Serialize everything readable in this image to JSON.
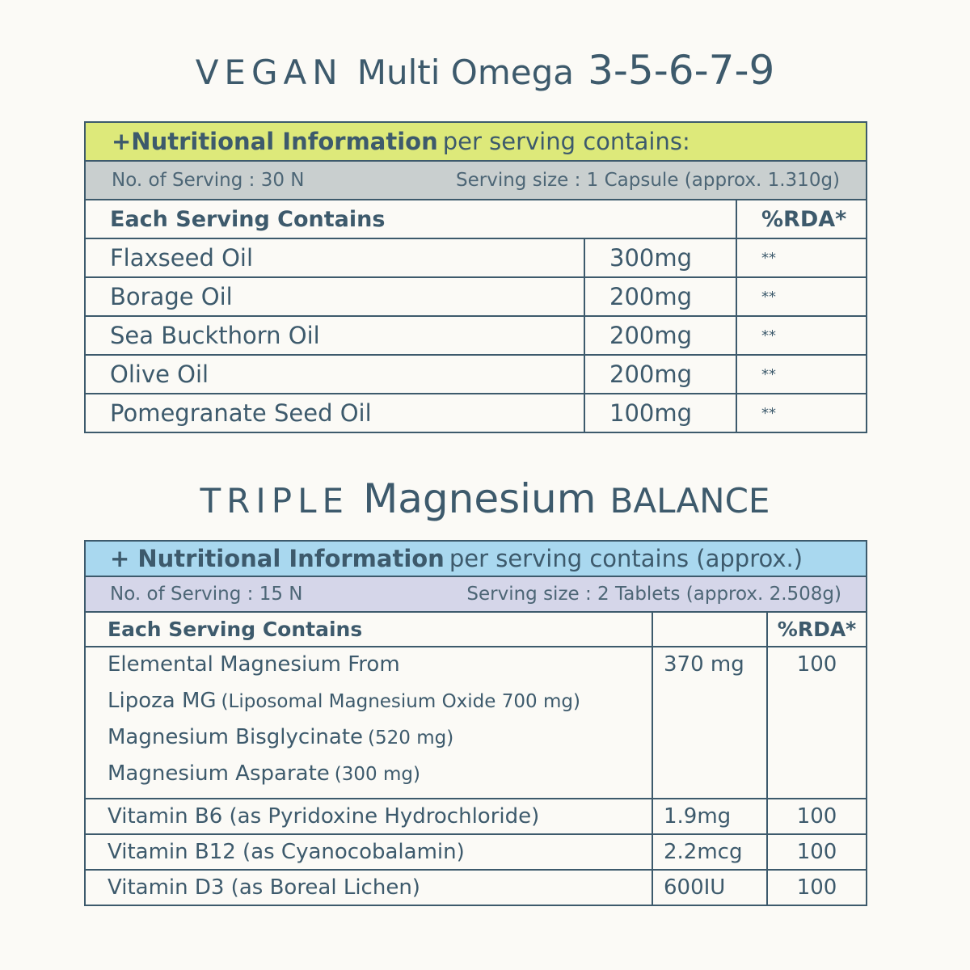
{
  "panels": [
    {
      "title": [
        "VEGAN",
        "Multi Omega",
        "3-5-6-7-9"
      ],
      "info": {
        "bold": "+Nutritional Information",
        "rest": "per serving contains:"
      },
      "servings": "No. of Serving : 30 N",
      "size": "Serving size : 1 Capsule (approx. 1.310g)",
      "header": {
        "label": "Each Serving Contains",
        "rda": "%RDA*"
      },
      "rows": [
        [
          "Flaxseed Oil",
          "300mg",
          "**"
        ],
        [
          "Borage Oil",
          "200mg",
          "**"
        ],
        [
          "Sea Buckthorn Oil",
          "200mg",
          "**"
        ],
        [
          "Olive Oil",
          "200mg",
          "**"
        ],
        [
          "Pomegranate Seed Oil",
          "100mg",
          "**"
        ]
      ]
    },
    {
      "title": [
        "TRIPLE",
        "Magnesium",
        "BALANCE"
      ],
      "info": {
        "bold": "+ Nutritional Information",
        "rest": "per serving contains (approx.)"
      },
      "servings": "No. of Serving : 15 N",
      "size": "Serving size : 2 Tablets (approx. 2.508g)",
      "header": {
        "label": "Each Serving Contains",
        "rda": "%RDA*"
      },
      "rows": [
        {
          "lines": [
            {
              "text": "Elemental Magnesium From"
            },
            {
              "text": "Lipoza MG",
              "note": "(Liposomal Magnesium Oxide 700 mg)"
            },
            {
              "text": "Magnesium Bisglycinate",
              "note": "(520 mg)"
            },
            {
              "text": "Magnesium Asparate",
              "note": "(300 mg)"
            }
          ],
          "amount": "370 mg",
          "rda": "100"
        },
        {
          "lines": [
            {
              "text": "Vitamin B6 (as Pyridoxine Hydrochloride)"
            }
          ],
          "amount": "1.9mg",
          "rda": "100"
        },
        {
          "lines": [
            {
              "text": "Vitamin B12 (as Cyanocobalamin)"
            }
          ],
          "amount": "2.2mcg",
          "rda": "100"
        },
        {
          "lines": [
            {
              "text": "Vitamin D3 (as Boreal Lichen)"
            }
          ],
          "amount": "600IU",
          "rda": "100"
        }
      ]
    }
  ]
}
